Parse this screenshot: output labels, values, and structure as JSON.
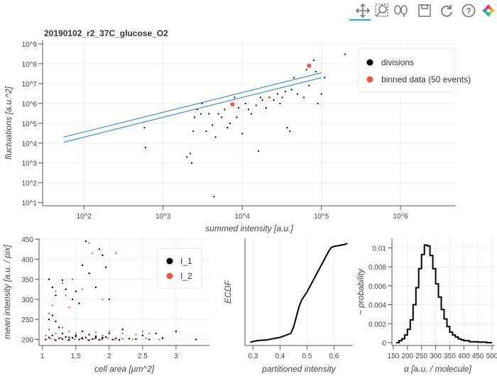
{
  "toolbar": {
    "tools": [
      {
        "name": "pan-tool",
        "icon": "move-arrows-icon",
        "active": true
      },
      {
        "name": "box-zoom-tool",
        "icon": "box-zoom-icon"
      },
      {
        "name": "wheel-zoom-tool",
        "icon": "wheel-zoom-icon"
      },
      {
        "name": "save-tool",
        "icon": "save-icon"
      },
      {
        "name": "reset-tool",
        "icon": "reset-icon"
      },
      {
        "name": "help-tool",
        "icon": "help-icon"
      },
      {
        "name": "bokeh-logo",
        "icon": "bokeh-logo-icon"
      }
    ],
    "accent": "#26aae1"
  },
  "colors": {
    "divisions": "#000000",
    "binned": "#e8574a",
    "fit": "#3d8fd6",
    "I_1": "#000000",
    "I_2": "#e8574a",
    "ecdf": "#000000",
    "hist": "#000000",
    "grid": "#ececec"
  },
  "chart_data": [
    {
      "type": "scatter",
      "title": "20190102_r2_37C_glucose_O2",
      "xlabel": "summed intensity [a.u.]",
      "ylabel": "fluctuations [a.u.^2]",
      "xscale": "log",
      "yscale": "log",
      "xlim": [
        30,
        5000000
      ],
      "ylim": [
        7,
        1500000000
      ],
      "x_ticks": [
        {
          "v": 100,
          "label": "10^2"
        },
        {
          "v": 1000,
          "label": "10^3"
        },
        {
          "v": 10000,
          "label": "10^4"
        },
        {
          "v": 100000,
          "label": "10^5"
        },
        {
          "v": 1000000,
          "label": "10^6"
        }
      ],
      "y_ticks": [
        {
          "v": 10,
          "label": "10^1"
        },
        {
          "v": 100,
          "label": "10^2"
        },
        {
          "v": 1000,
          "label": "10^3"
        },
        {
          "v": 10000,
          "label": "10^4"
        },
        {
          "v": 100000,
          "label": "10^5"
        },
        {
          "v": 1000000,
          "label": "10^6"
        },
        {
          "v": 10000000,
          "label": "10^7"
        },
        {
          "v": 100000000,
          "label": "10^8"
        },
        {
          "v": 1000000000,
          "label": "10^9"
        }
      ],
      "legend": {
        "position": "top-right",
        "items": [
          "divisions",
          "binned data (50 events)"
        ]
      },
      "series": [
        {
          "name": "divisions",
          "kind": "scatter",
          "points": [
            [
              600,
              6000
            ],
            [
              580,
              60000
            ],
            [
              2000,
              2000
            ],
            [
              2200,
              3000
            ],
            [
              2300,
              1000
            ],
            [
              2400,
              40000
            ],
            [
              2500,
              200000
            ],
            [
              2700,
              500000
            ],
            [
              3000,
              300000
            ],
            [
              3100,
              1000000
            ],
            [
              3500,
              40000
            ],
            [
              3800,
              300000
            ],
            [
              4200,
              80000
            ],
            [
              4400,
              20
            ],
            [
              4600,
              20000
            ],
            [
              5000,
              300000
            ],
            [
              5500,
              200000
            ],
            [
              6000,
              500000
            ],
            [
              6500,
              60000
            ],
            [
              7000,
              100000
            ],
            [
              8000,
              2000000
            ],
            [
              8500,
              200000
            ],
            [
              9000,
              600000
            ],
            [
              10000,
              30000
            ],
            [
              11000,
              1000000
            ],
            [
              12000,
              500000
            ],
            [
              13000,
              300000
            ],
            [
              15000,
              800000
            ],
            [
              16000,
              4000
            ],
            [
              17000,
              2000000
            ],
            [
              18000,
              1500000
            ],
            [
              20000,
              600000
            ],
            [
              22000,
              2000000
            ],
            [
              25000,
              1500000
            ],
            [
              28000,
              3000000
            ],
            [
              30000,
              1000000
            ],
            [
              32000,
              2000000
            ],
            [
              35000,
              4000000
            ],
            [
              37000,
              60000
            ],
            [
              40000,
              40000
            ],
            [
              42000,
              5000000
            ],
            [
              45000,
              20000000
            ],
            [
              50000,
              3000000
            ],
            [
              60000,
              2000000
            ],
            [
              65000,
              50000000
            ],
            [
              70000,
              8000000
            ],
            [
              80000,
              150000000
            ],
            [
              85000,
              40000000
            ],
            [
              90000,
              1000000
            ],
            [
              100000,
              3000000
            ],
            [
              110000,
              20000000
            ],
            [
              200000,
              300000000
            ]
          ]
        },
        {
          "name": "binned data (50 events)",
          "kind": "scatter",
          "points": [
            [
              7500,
              900000
            ],
            [
              70000,
              80000000
            ]
          ]
        },
        {
          "name": "fit-upper",
          "kind": "line",
          "points": [
            [
              55,
              20000
            ],
            [
              100000,
              35000000
            ]
          ]
        },
        {
          "name": "fit-lower",
          "kind": "line",
          "points": [
            [
              55,
              11000
            ],
            [
              100000,
              20000000
            ]
          ]
        }
      ]
    },
    {
      "type": "scatter",
      "xlabel": "cell area [μm^2]",
      "ylabel": "mean intensity [a.u. / pix]",
      "xlim": [
        0.95,
        3.5
      ],
      "ylim": [
        185,
        452
      ],
      "x_ticks": [
        1,
        1.5,
        2,
        2.5,
        3
      ],
      "y_ticks": [
        200,
        250,
        300,
        350,
        400,
        450
      ],
      "legend": {
        "position": "top-right",
        "items": [
          "I_1",
          "I_2"
        ]
      },
      "series": [
        {
          "name": "I_1",
          "points": [
            [
              1.1,
              350
            ],
            [
              1.15,
              330
            ],
            [
              1.2,
              310
            ],
            [
              1.3,
              348
            ],
            [
              1.35,
              325
            ],
            [
              1.45,
              300
            ],
            [
              1.5,
              320
            ],
            [
              1.55,
              290
            ],
            [
              1.6,
              385
            ],
            [
              1.7,
              365
            ],
            [
              1.8,
              330
            ],
            [
              1.85,
              425
            ],
            [
              1.9,
              410
            ],
            [
              1.95,
              380
            ],
            [
              2.0,
              300
            ],
            [
              1.65,
              445
            ],
            [
              1.1,
              250
            ],
            [
              1.15,
              260
            ],
            [
              1.2,
              245
            ],
            [
              1.25,
              230
            ],
            [
              1.3,
              215
            ],
            [
              1.4,
              205
            ],
            [
              1.5,
              210
            ],
            [
              1.6,
              220
            ],
            [
              1.7,
              212
            ],
            [
              1.8,
              208
            ],
            [
              1.9,
              205
            ],
            [
              2.0,
              215
            ],
            [
              2.2,
              225
            ],
            [
              2.5,
              210
            ],
            [
              2.7,
              215
            ],
            [
              3.0,
              220
            ],
            [
              3.3,
              200
            ],
            [
              1.05,
              200
            ],
            [
              1.1,
              205
            ],
            [
              1.15,
              210
            ],
            [
              1.2,
              198
            ],
            [
              1.25,
              203
            ],
            [
              1.3,
              201
            ],
            [
              1.35,
              206
            ],
            [
              1.4,
              199
            ],
            [
              1.45,
              204
            ],
            [
              1.5,
              207
            ],
            [
              1.55,
              200
            ],
            [
              1.6,
              202
            ],
            [
              1.65,
              205
            ],
            [
              1.7,
              198
            ],
            [
              1.75,
              201
            ],
            [
              1.8,
              204
            ],
            [
              1.85,
              199
            ],
            [
              1.9,
              202
            ],
            [
              1.95,
              206
            ],
            [
              2.05,
              200
            ],
            [
              2.1,
              203
            ],
            [
              2.15,
              199
            ],
            [
              2.3,
              202
            ],
            [
              2.4,
              201
            ],
            [
              2.6,
              200
            ],
            [
              2.8,
              203
            ]
          ]
        },
        {
          "name": "I_2",
          "points": [
            [
              1.1,
              265
            ],
            [
              1.15,
              285
            ],
            [
              1.2,
              320
            ],
            [
              1.3,
              340
            ],
            [
              1.35,
              310
            ],
            [
              1.4,
              280
            ],
            [
              1.45,
              350
            ],
            [
              1.7,
              440
            ],
            [
              1.75,
              415
            ],
            [
              2.1,
              415
            ],
            [
              1.9,
              300
            ],
            [
              1.6,
              325
            ],
            [
              1.05,
              210
            ],
            [
              1.1,
              225
            ],
            [
              1.2,
              215
            ],
            [
              1.3,
              230
            ],
            [
              1.4,
              220
            ],
            [
              1.5,
              215
            ],
            [
              1.6,
              205
            ],
            [
              1.7,
              212
            ],
            [
              1.8,
              218
            ],
            [
              1.9,
              210
            ],
            [
              2.0,
              220
            ],
            [
              2.2,
              215
            ],
            [
              2.4,
              212
            ],
            [
              2.5,
              220
            ],
            [
              2.6,
              215
            ],
            [
              2.8,
              205
            ],
            [
              3.3,
              200
            ],
            [
              1.05,
              199
            ],
            [
              1.12,
              202
            ],
            [
              1.18,
              200
            ],
            [
              1.28,
              204
            ],
            [
              1.38,
              198
            ],
            [
              1.48,
              201
            ],
            [
              1.58,
              203
            ],
            [
              1.68,
              199
            ],
            [
              1.78,
              202
            ],
            [
              1.88,
              200
            ],
            [
              1.98,
              204
            ],
            [
              2.08,
              199
            ],
            [
              2.2,
              202
            ],
            [
              2.35,
              200
            ],
            [
              2.55,
              203
            ],
            [
              2.75,
              200
            ]
          ]
        }
      ]
    },
    {
      "type": "line",
      "xlabel": "partitioned intensity",
      "ylabel": "ECDF",
      "xlim": [
        0.27,
        0.67
      ],
      "ylim": [
        -0.03,
        1.03
      ],
      "x_ticks": [
        0.3,
        0.4,
        0.5,
        0.6
      ],
      "series": [
        {
          "name": "ECDF",
          "points": [
            [
              0.29,
              0.0
            ],
            [
              0.3,
              0.01
            ],
            [
              0.32,
              0.02
            ],
            [
              0.35,
              0.025
            ],
            [
              0.38,
              0.04
            ],
            [
              0.4,
              0.05
            ],
            [
              0.42,
              0.07
            ],
            [
              0.44,
              0.09
            ],
            [
              0.45,
              0.15
            ],
            [
              0.46,
              0.25
            ],
            [
              0.47,
              0.35
            ],
            [
              0.48,
              0.42
            ],
            [
              0.5,
              0.5
            ],
            [
              0.51,
              0.55
            ],
            [
              0.52,
              0.6
            ],
            [
              0.53,
              0.65
            ],
            [
              0.54,
              0.7
            ],
            [
              0.55,
              0.75
            ],
            [
              0.56,
              0.8
            ],
            [
              0.57,
              0.85
            ],
            [
              0.58,
              0.9
            ],
            [
              0.59,
              0.94
            ],
            [
              0.6,
              0.95
            ],
            [
              0.62,
              0.96
            ],
            [
              0.64,
              0.97
            ],
            [
              0.65,
              0.98
            ]
          ]
        }
      ]
    },
    {
      "type": "line",
      "xlabel": "α [a.u. / molecule]",
      "ylabel": "~ probability",
      "xlim": [
        145,
        510
      ],
      "ylim": [
        -0.0003,
        0.011
      ],
      "x_ticks": [
        150,
        200,
        250,
        300,
        350,
        400,
        450,
        500
      ],
      "y_ticks": [
        0,
        0.002,
        0.004,
        0.006,
        0.008,
        0.01
      ],
      "y_tick_labels": [
        "0",
        "0.002",
        "0.004",
        "0.006",
        "0.008",
        "0.01"
      ],
      "series": [
        {
          "name": "histogram",
          "points": [
            [
              160,
              0
            ],
            [
              170,
              0.0002
            ],
            [
              180,
              0.0004
            ],
            [
              190,
              0.0008
            ],
            [
              200,
              0.0014
            ],
            [
              210,
              0.0024
            ],
            [
              220,
              0.004
            ],
            [
              230,
              0.0058
            ],
            [
              240,
              0.0078
            ],
            [
              250,
              0.0093
            ],
            [
              260,
              0.0103
            ],
            [
              270,
              0.0102
            ],
            [
              280,
              0.0092
            ],
            [
              290,
              0.0078
            ],
            [
              300,
              0.0062
            ],
            [
              310,
              0.0048
            ],
            [
              320,
              0.0035
            ],
            [
              330,
              0.0025
            ],
            [
              340,
              0.0017
            ],
            [
              350,
              0.0011
            ],
            [
              360,
              0.0008
            ],
            [
              370,
              0.0006
            ],
            [
              380,
              0.0004
            ],
            [
              390,
              0.0003
            ],
            [
              400,
              0.0002
            ],
            [
              420,
              0.0001
            ],
            [
              450,
              5e-05
            ],
            [
              480,
              0
            ],
            [
              500,
              0
            ]
          ]
        }
      ]
    }
  ]
}
